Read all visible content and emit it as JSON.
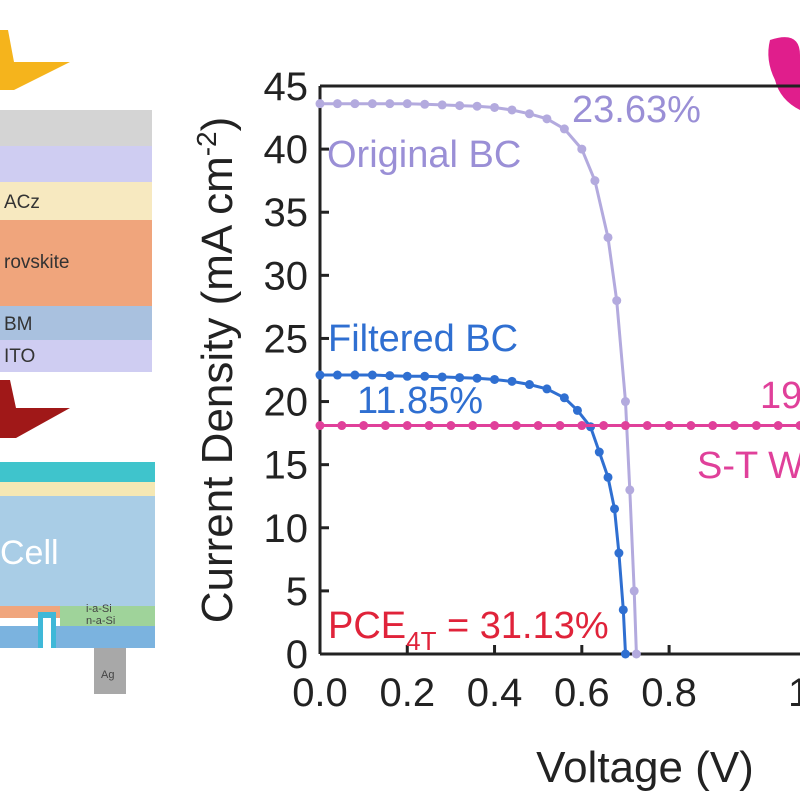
{
  "device": {
    "layers": [
      {
        "label": "",
        "color": "#d4d4d4"
      },
      {
        "label": "",
        "color": "#cfcdf2"
      },
      {
        "label": "ACz",
        "color": "#f7e9c0"
      },
      {
        "label": "rovskite",
        "color": "#f0a57c"
      },
      {
        "label": "BM",
        "color": "#a9c1df"
      },
      {
        "label": "ITO",
        "color": "#cfcdf2"
      }
    ],
    "bottom_cell": {
      "label": "Cell",
      "top_color": "#3fc4cc",
      "stripe_color": "#f5e8b4",
      "body_color": "#a9cde6",
      "bottom_stripe_color": "#f0a57c",
      "bottom_color": "#7bb3df",
      "labels": [
        "i-a-Si",
        "n-a-Si"
      ],
      "contact_label": "Ag"
    },
    "light_top_color": "#f5b41c",
    "light_filtered_color": "#a01818"
  },
  "logo": {
    "color": "#e01e8c"
  },
  "annotations": {
    "original_bc": {
      "name": "Original BC",
      "pce": "23.63%",
      "color": "#9a8fd6"
    },
    "filtered_bc": {
      "name": "Filtered BC",
      "pce": "11.85%",
      "color": "#2f6fd1"
    },
    "st_wide": {
      "name": "S-T W",
      "pce": "19",
      "color": "#e0409a"
    },
    "pce_4t": {
      "main": "PCE",
      "sub": "4T",
      "value": " = 31.13%",
      "color": "#e0233a"
    }
  },
  "chart_data": {
    "type": "line",
    "xlabel": "Voltage (V)",
    "ylabel": "Current Density (mA cm",
    "ylabel_sup": "-2",
    "ylabel_end": ")",
    "xlim": [
      0.0,
      1.1
    ],
    "ylim": [
      0,
      45
    ],
    "xticks": [
      0.0,
      0.2,
      0.4,
      0.6,
      0.8
    ],
    "xtick_labels": [
      "0.0",
      "0.2",
      "0.4",
      "0.6",
      "0.8"
    ],
    "xtick_partial_label": "1",
    "yticks": [
      0,
      5,
      10,
      15,
      20,
      25,
      30,
      35,
      40,
      45
    ],
    "ytick_labels": [
      "0",
      "5",
      "10",
      "15",
      "20",
      "25",
      "30",
      "35",
      "40",
      "45"
    ],
    "series": [
      {
        "name": "Original BC",
        "color": "#b3aade",
        "x": [
          0.0,
          0.04,
          0.08,
          0.12,
          0.16,
          0.2,
          0.24,
          0.28,
          0.32,
          0.36,
          0.4,
          0.44,
          0.48,
          0.52,
          0.56,
          0.6,
          0.63,
          0.66,
          0.68,
          0.7,
          0.71,
          0.72,
          0.725
        ],
        "y": [
          43.6,
          43.6,
          43.6,
          43.6,
          43.6,
          43.6,
          43.55,
          43.5,
          43.45,
          43.4,
          43.3,
          43.1,
          42.8,
          42.4,
          41.6,
          40.0,
          37.5,
          33.0,
          28.0,
          20.0,
          13.0,
          5.0,
          0.0
        ]
      },
      {
        "name": "Filtered BC",
        "color": "#2f6fd1",
        "x": [
          0.0,
          0.04,
          0.08,
          0.12,
          0.16,
          0.2,
          0.24,
          0.28,
          0.32,
          0.36,
          0.4,
          0.44,
          0.48,
          0.52,
          0.56,
          0.59,
          0.62,
          0.64,
          0.66,
          0.675,
          0.685,
          0.695,
          0.7
        ],
        "y": [
          22.1,
          22.1,
          22.1,
          22.1,
          22.05,
          22.0,
          22.0,
          21.95,
          21.9,
          21.85,
          21.75,
          21.6,
          21.35,
          21.0,
          20.3,
          19.3,
          18.0,
          16.0,
          14.0,
          11.5,
          8.0,
          3.5,
          0.0
        ]
      },
      {
        "name": "S-T W",
        "color": "#e0409a",
        "x": [
          0.0,
          0.05,
          0.1,
          0.15,
          0.2,
          0.25,
          0.3,
          0.35,
          0.4,
          0.45,
          0.5,
          0.55,
          0.6,
          0.65,
          0.7,
          0.75,
          0.8,
          0.85,
          0.9,
          0.95,
          1.0,
          1.05,
          1.1
        ],
        "y": [
          18.1,
          18.1,
          18.1,
          18.1,
          18.1,
          18.1,
          18.1,
          18.1,
          18.1,
          18.1,
          18.1,
          18.1,
          18.1,
          18.1,
          18.1,
          18.1,
          18.1,
          18.1,
          18.1,
          18.1,
          18.1,
          18.1,
          18.1
        ]
      }
    ]
  }
}
